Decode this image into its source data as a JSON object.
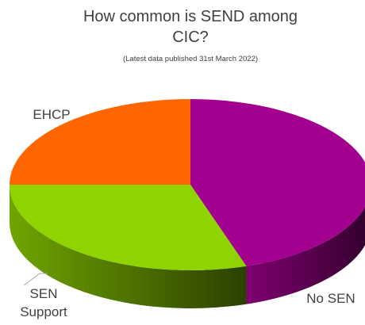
{
  "chart_data": {
    "type": "pie",
    "title": "How common is SEND among CIC?",
    "subtitle": "(Latest data published 31st March 2022)",
    "categories": [
      "No SEN",
      "SEN Support",
      "EHCP"
    ],
    "values": [
      45,
      30,
      25
    ],
    "colors": [
      "#A3008F",
      "#8FD400",
      "#FF6600"
    ],
    "labels": [
      {
        "lines": [
          "No SEN"
        ]
      },
      {
        "lines": [
          "SEN",
          "Support"
        ]
      },
      {
        "lines": [
          "EHCP"
        ]
      }
    ]
  }
}
